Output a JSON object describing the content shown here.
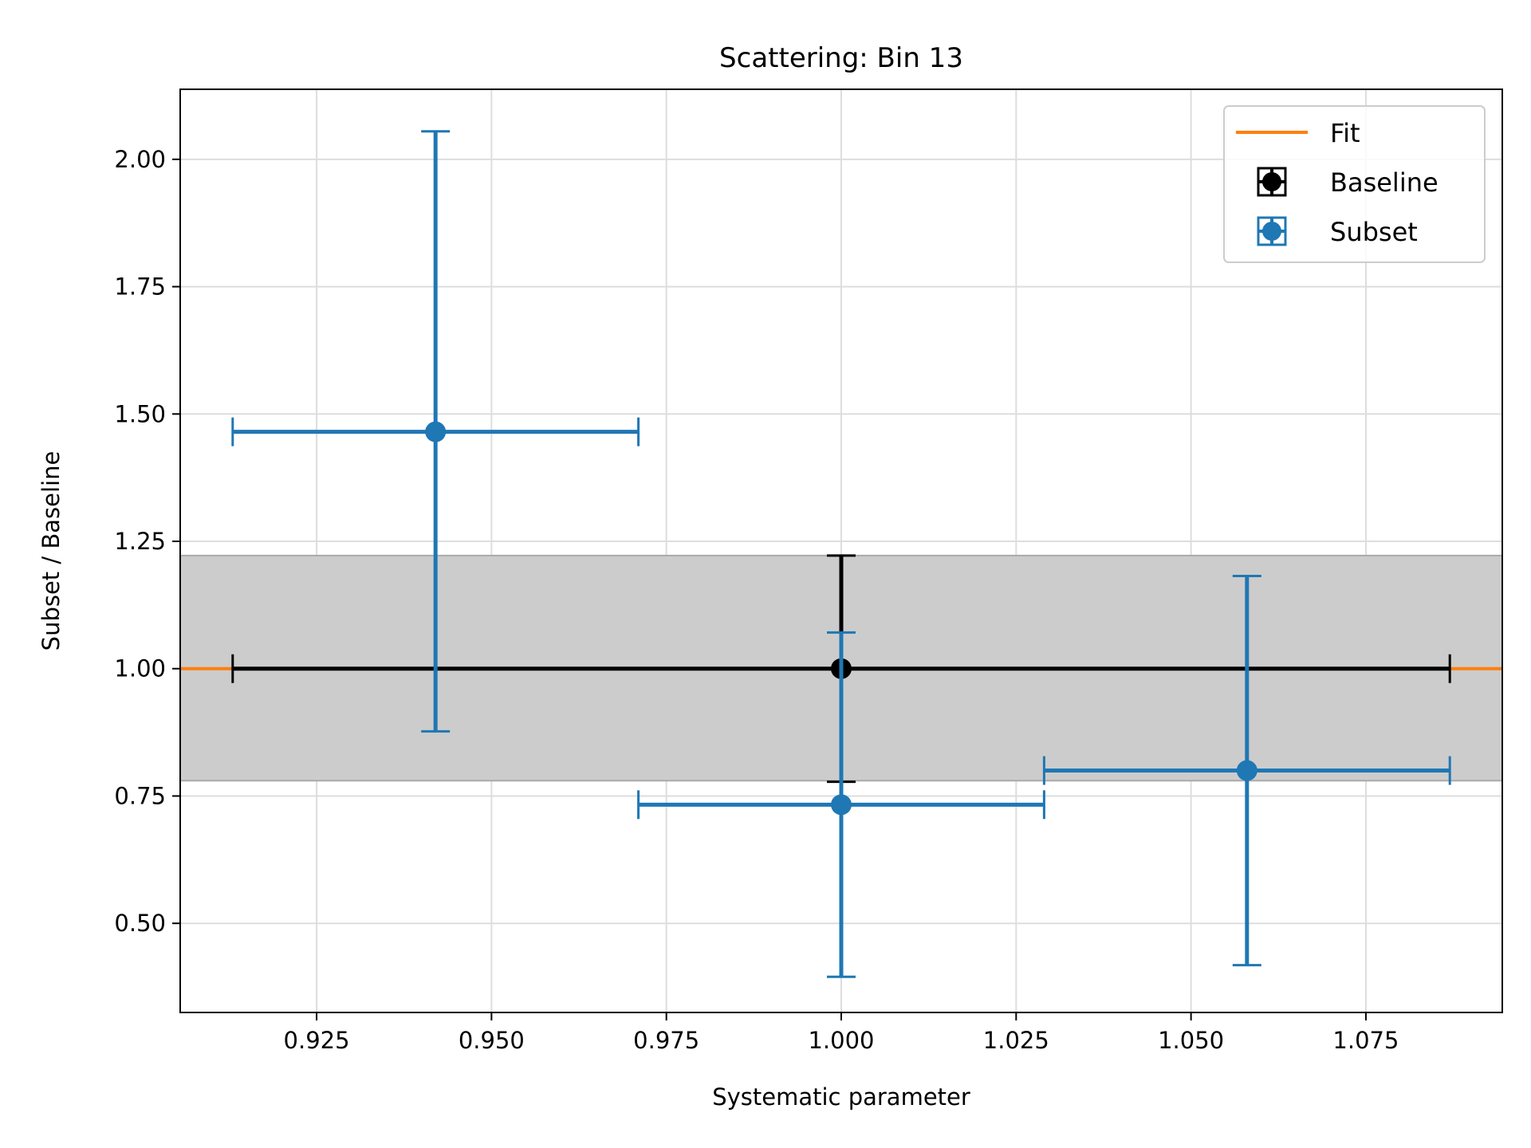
{
  "chart_data": {
    "type": "scatter",
    "title": "Scattering: Bin 13",
    "xlabel": "Systematic parameter",
    "ylabel": "Subset / Baseline",
    "xlim": [
      0.9055,
      1.0945
    ],
    "ylim": [
      0.325,
      2.1375
    ],
    "xticks": [
      0.925,
      0.95,
      0.975,
      1.0,
      1.025,
      1.05,
      1.075
    ],
    "xtick_labels": [
      "0.925",
      "0.950",
      "0.975",
      "1.000",
      "1.025",
      "1.050",
      "1.075"
    ],
    "yticks": [
      0.5,
      0.75,
      1.0,
      1.25,
      1.5,
      1.75,
      2.0
    ],
    "ytick_labels": [
      "0.50",
      "0.75",
      "1.00",
      "1.25",
      "1.50",
      "1.75",
      "2.00"
    ],
    "grid": true,
    "legend_position": "top-right",
    "fit": {
      "name": "Fit",
      "y": 1.0,
      "band": [
        0.78,
        1.222
      ],
      "color": "#ff7f0e",
      "band_color": "#cccccc"
    },
    "series": [
      {
        "name": "Baseline",
        "color": "#000000",
        "points": [
          {
            "x": 1.0,
            "y": 1.0,
            "xerr": 0.087,
            "yerr": 0.222
          }
        ]
      },
      {
        "name": "Subset",
        "color": "#1f77b4",
        "points": [
          {
            "x": 0.942,
            "y": 1.465,
            "xerr": 0.029,
            "yerr_low": 0.588,
            "yerr_high": 0.59
          },
          {
            "x": 1.0,
            "y": 0.733,
            "xerr": 0.029,
            "yerr_low": 0.338,
            "yerr_high": 0.338
          },
          {
            "x": 1.058,
            "y": 0.8,
            "xerr": 0.029,
            "yerr_low": 0.382,
            "yerr_high": 0.382
          }
        ]
      }
    ]
  }
}
